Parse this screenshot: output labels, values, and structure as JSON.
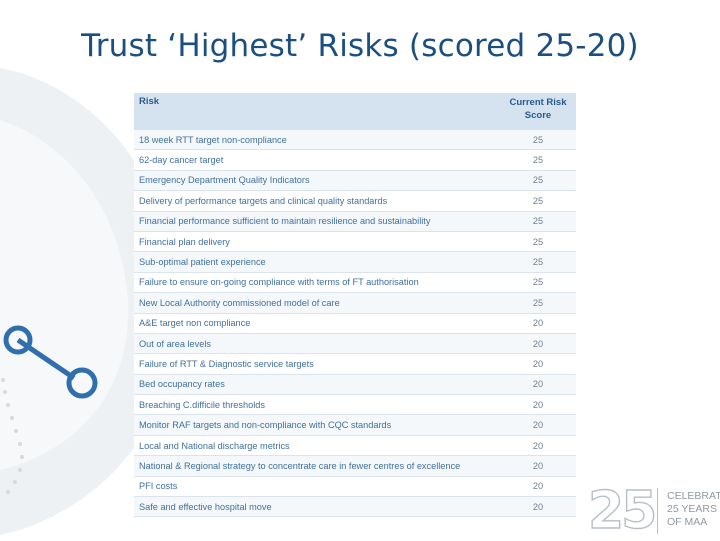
{
  "slide": {
    "title": "Trust ‘Highest’ Risks (scored 25-20)"
  },
  "table": {
    "headers": {
      "risk": "Risk",
      "score_line1": "Current Risk",
      "score_line2": "Score"
    },
    "rows": [
      {
        "risk": "18 week RTT target non-compliance",
        "score": "25"
      },
      {
        "risk": "62-day cancer target",
        "score": "25"
      },
      {
        "risk": "Emergency Department Quality Indicators",
        "score": "25"
      },
      {
        "risk": "Delivery of performance targets and clinical quality standards",
        "score": "25"
      },
      {
        "risk": "Financial performance sufficient to maintain resilience and sustainability",
        "score": "25"
      },
      {
        "risk": "Financial plan delivery",
        "score": "25"
      },
      {
        "risk": "Sub-optimal patient experience",
        "score": "25"
      },
      {
        "risk": "Failure to ensure on-going compliance with terms of FT authorisation",
        "score": "25"
      },
      {
        "risk": "New Local Authority commissioned model of care",
        "score": "25"
      },
      {
        "risk": "A&E target non compliance",
        "score": "20"
      },
      {
        "risk": "Out of area levels",
        "score": "20"
      },
      {
        "risk": "Failure of RTT & Diagnostic service targets",
        "score": "20"
      },
      {
        "risk": "Bed occupancy rates",
        "score": "20"
      },
      {
        "risk": "Breaching C.difficile thresholds",
        "score": "20"
      },
      {
        "risk": "Monitor RAF targets and non-compliance with CQC standards",
        "score": "20"
      },
      {
        "risk": "Local and National discharge metrics",
        "score": "20"
      },
      {
        "risk": "National & Regional strategy to concentrate care in fewer centres of excellence",
        "score": "20"
      },
      {
        "risk": "PFI costs",
        "score": "20"
      },
      {
        "risk": "Safe and effective hospital move",
        "score": "20"
      }
    ]
  },
  "logo": {
    "number": "25",
    "line1": "CELEBRATING",
    "line2": "25 YEARS",
    "line3": "OF MAA"
  },
  "colors": {
    "title": "#1b4f82",
    "header_bg": "#d5e3f0",
    "decor_circle": "#2f6fae"
  }
}
